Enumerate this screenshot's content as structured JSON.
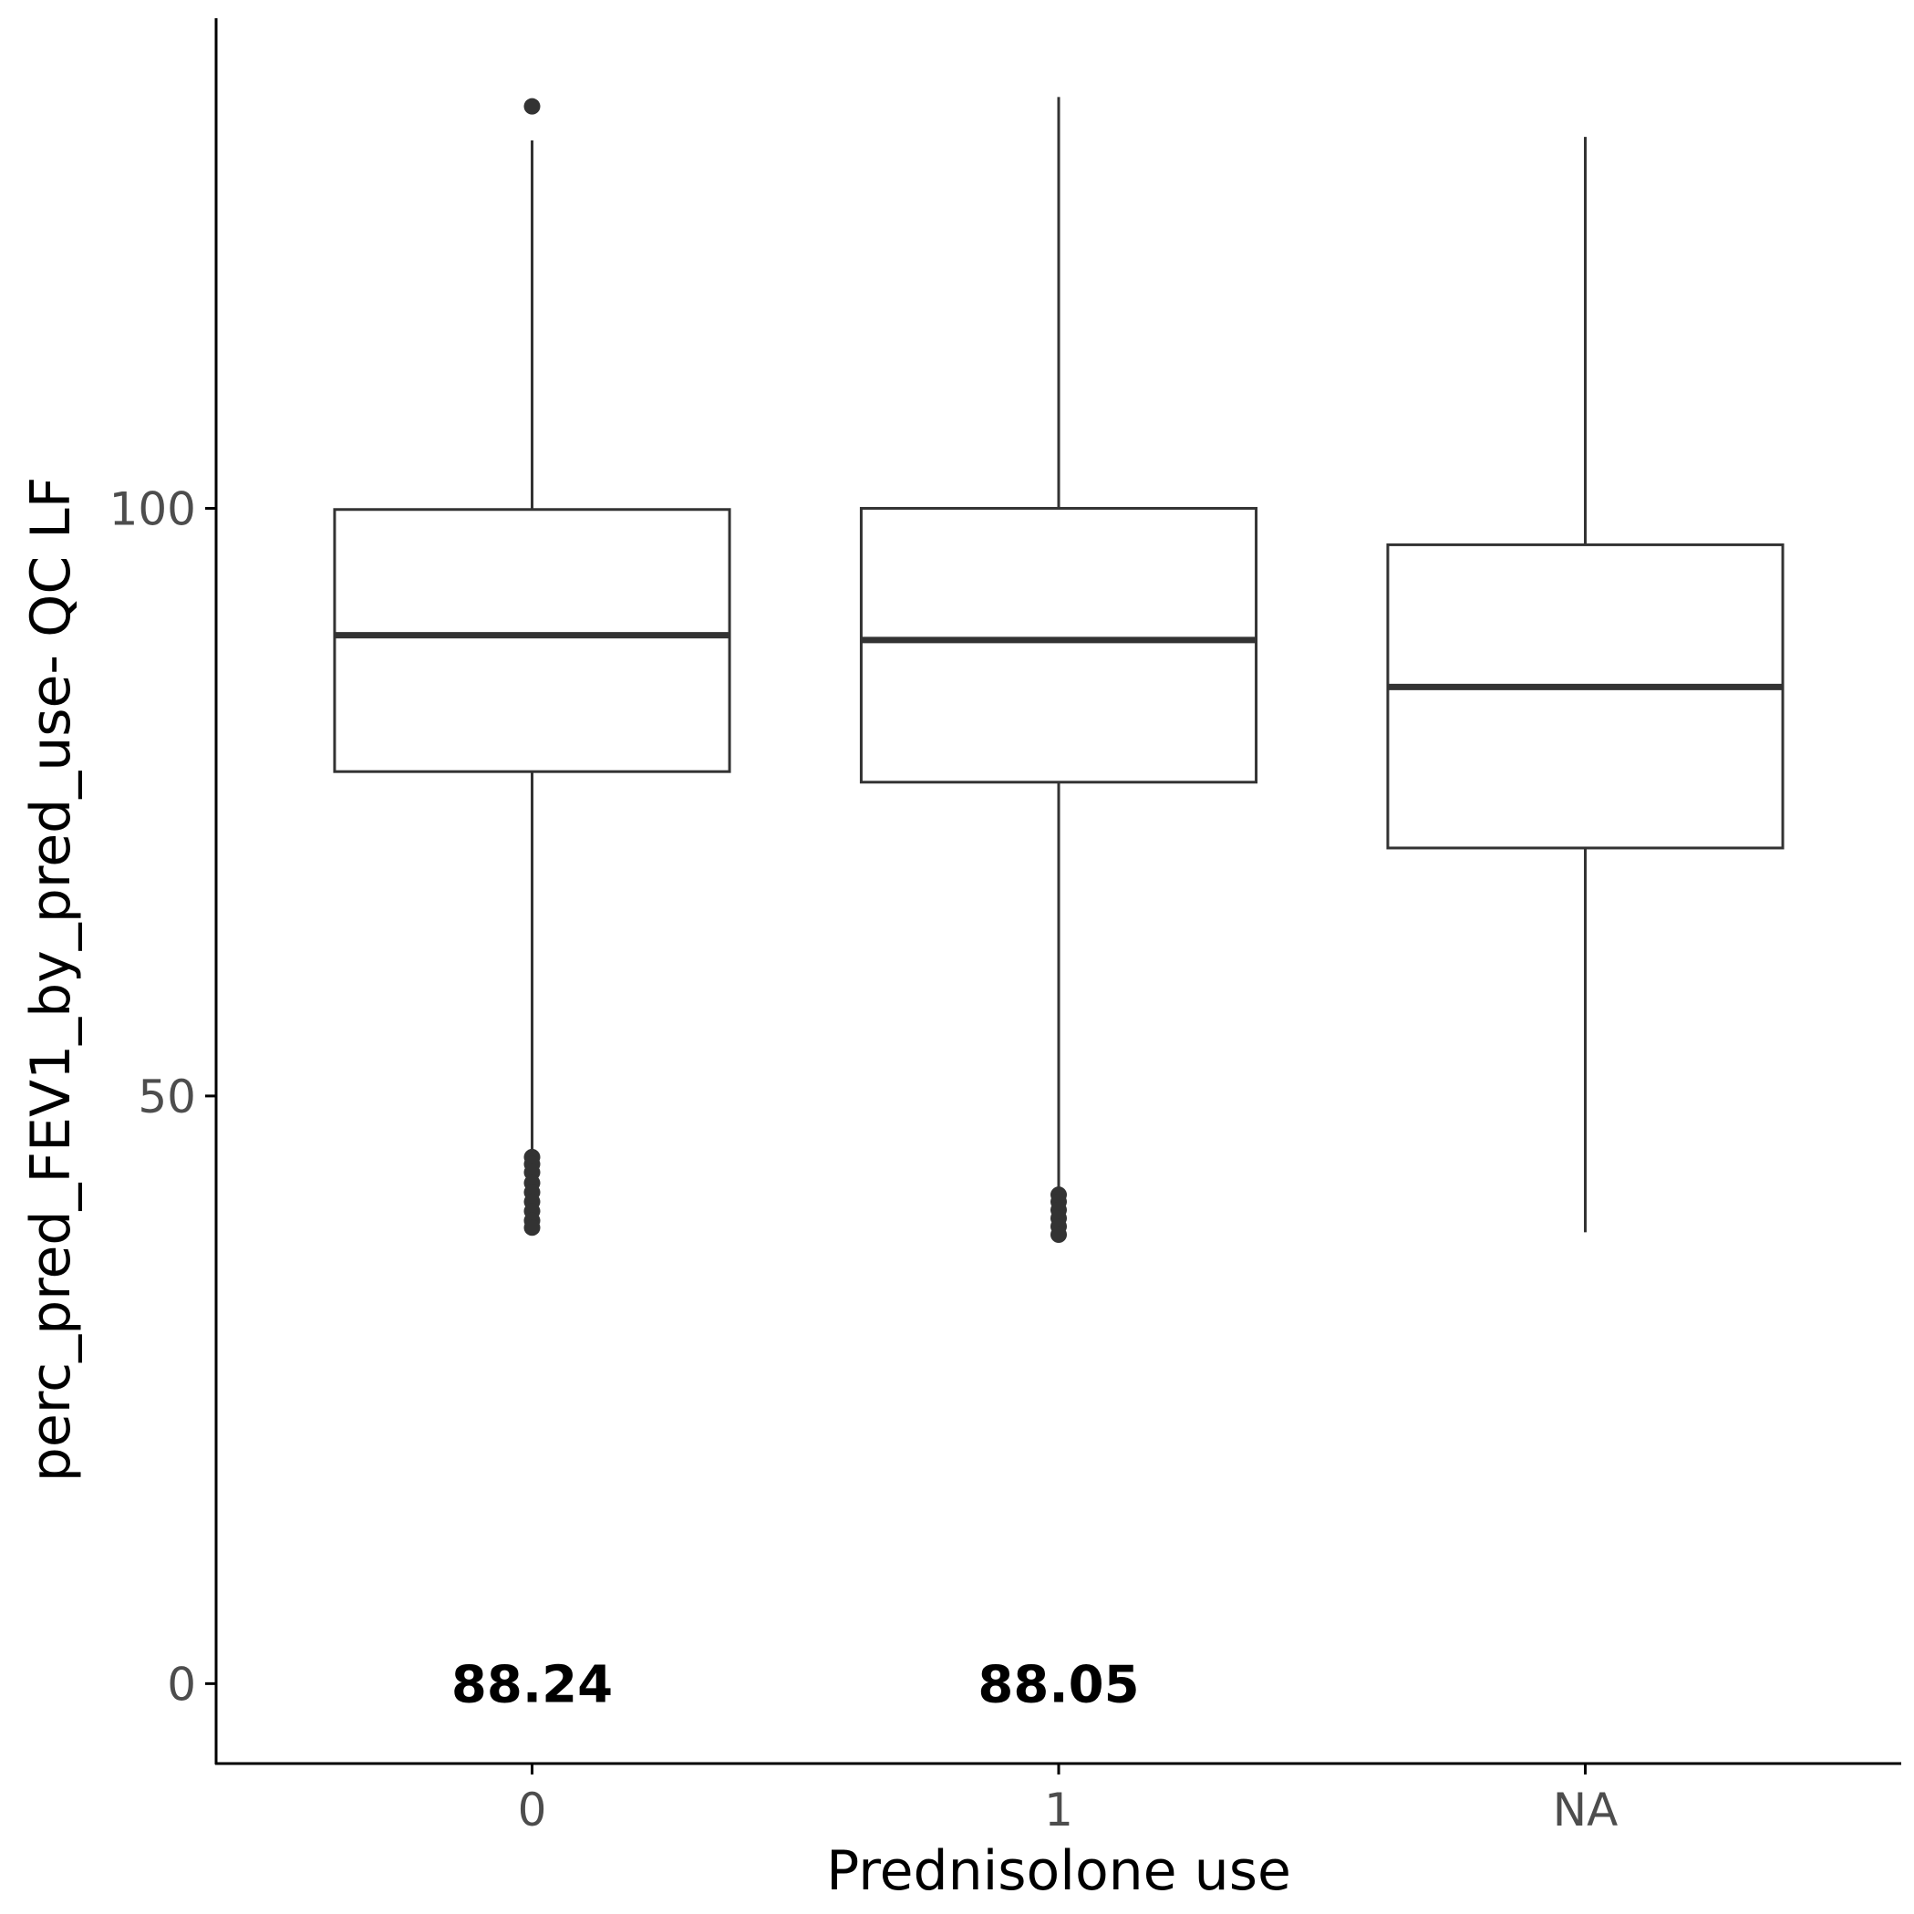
{
  "colors": {
    "box_stroke": "#333333",
    "box_fill": "#ffffff",
    "axis": "#000000",
    "tick_label": "#4d4d4d",
    "annotation": "#000000"
  },
  "chart_data": {
    "type": "box",
    "title": "",
    "xlabel": "Prednisolone use",
    "ylabel": "perc_pred_FEV1_by_pred_use- QC LF",
    "categories": [
      "0",
      "1",
      "NA"
    ],
    "ylim": [
      -6.8,
      141.7
    ],
    "yticks": [
      {
        "value": 0,
        "label": "0"
      },
      {
        "value": 50,
        "label": "50"
      },
      {
        "value": 100,
        "label": "100"
      }
    ],
    "grid": false,
    "legend": "none",
    "boxes": [
      {
        "category": "0",
        "whisker_low": 42.5,
        "q1": 77.6,
        "median": 89.2,
        "q3": 99.9,
        "whisker_high": 131.3,
        "outliers": [
          134.2,
          44.8,
          44.2,
          43.5,
          42.6,
          41.8,
          41.0,
          40.2,
          39.4,
          38.8
        ]
      },
      {
        "category": "1",
        "whisker_low": 41.0,
        "q1": 76.7,
        "median": 88.8,
        "q3": 100.0,
        "whisker_high": 135.0,
        "outliers": [
          41.6,
          41.0,
          40.3,
          39.6,
          38.9,
          38.2
        ]
      },
      {
        "category": "NA",
        "whisker_low": 38.4,
        "q1": 71.1,
        "median": 84.8,
        "q3": 96.9,
        "whisker_high": 131.6,
        "outliers": []
      }
    ],
    "annotations": [
      {
        "category": "0",
        "text": "88.24",
        "y": 0
      },
      {
        "category": "1",
        "text": "88.05",
        "y": 0
      }
    ]
  }
}
